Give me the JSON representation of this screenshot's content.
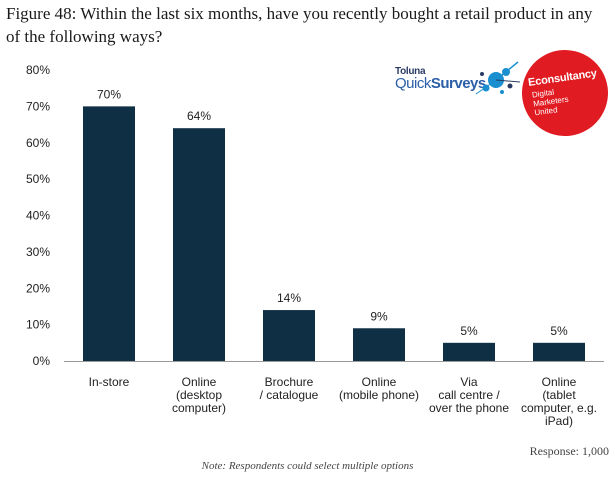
{
  "title": "Figure 48: Within the last six months, have you recently bought a retail product in any of the following ways?",
  "chart_data": {
    "type": "bar",
    "categories": [
      [
        "In-store"
      ],
      [
        "Online",
        "(desktop",
        "computer)"
      ],
      [
        "Brochure",
        "/ catalogue"
      ],
      [
        "Online",
        "(mobile phone)"
      ],
      [
        "Via",
        "call centre /",
        "over the phone"
      ],
      [
        "Online",
        "(tablet",
        "computer, e.g.",
        "iPad)"
      ]
    ],
    "values": [
      70,
      64,
      14,
      9,
      5,
      5
    ],
    "data_labels": [
      "70%",
      "64%",
      "14%",
      "9%",
      "5%",
      "5%"
    ],
    "y_ticks": [
      "0%",
      "10%",
      "20%",
      "30%",
      "40%",
      "50%",
      "60%",
      "70%",
      "80%"
    ],
    "ylim": [
      0,
      80
    ],
    "bar_color": "#0f2f45",
    "grid": false,
    "legend": "none"
  },
  "logos": {
    "toluna_small": "Toluna",
    "toluna_quick": "Quick",
    "toluna_surveys": "Surveys",
    "econsultancy_name": "Econsultancy",
    "econsultancy_tagline": [
      "Digital",
      "Marketers",
      "United"
    ]
  },
  "response": "Response: 1,000",
  "note": "Note: Respondents could select multiple options"
}
